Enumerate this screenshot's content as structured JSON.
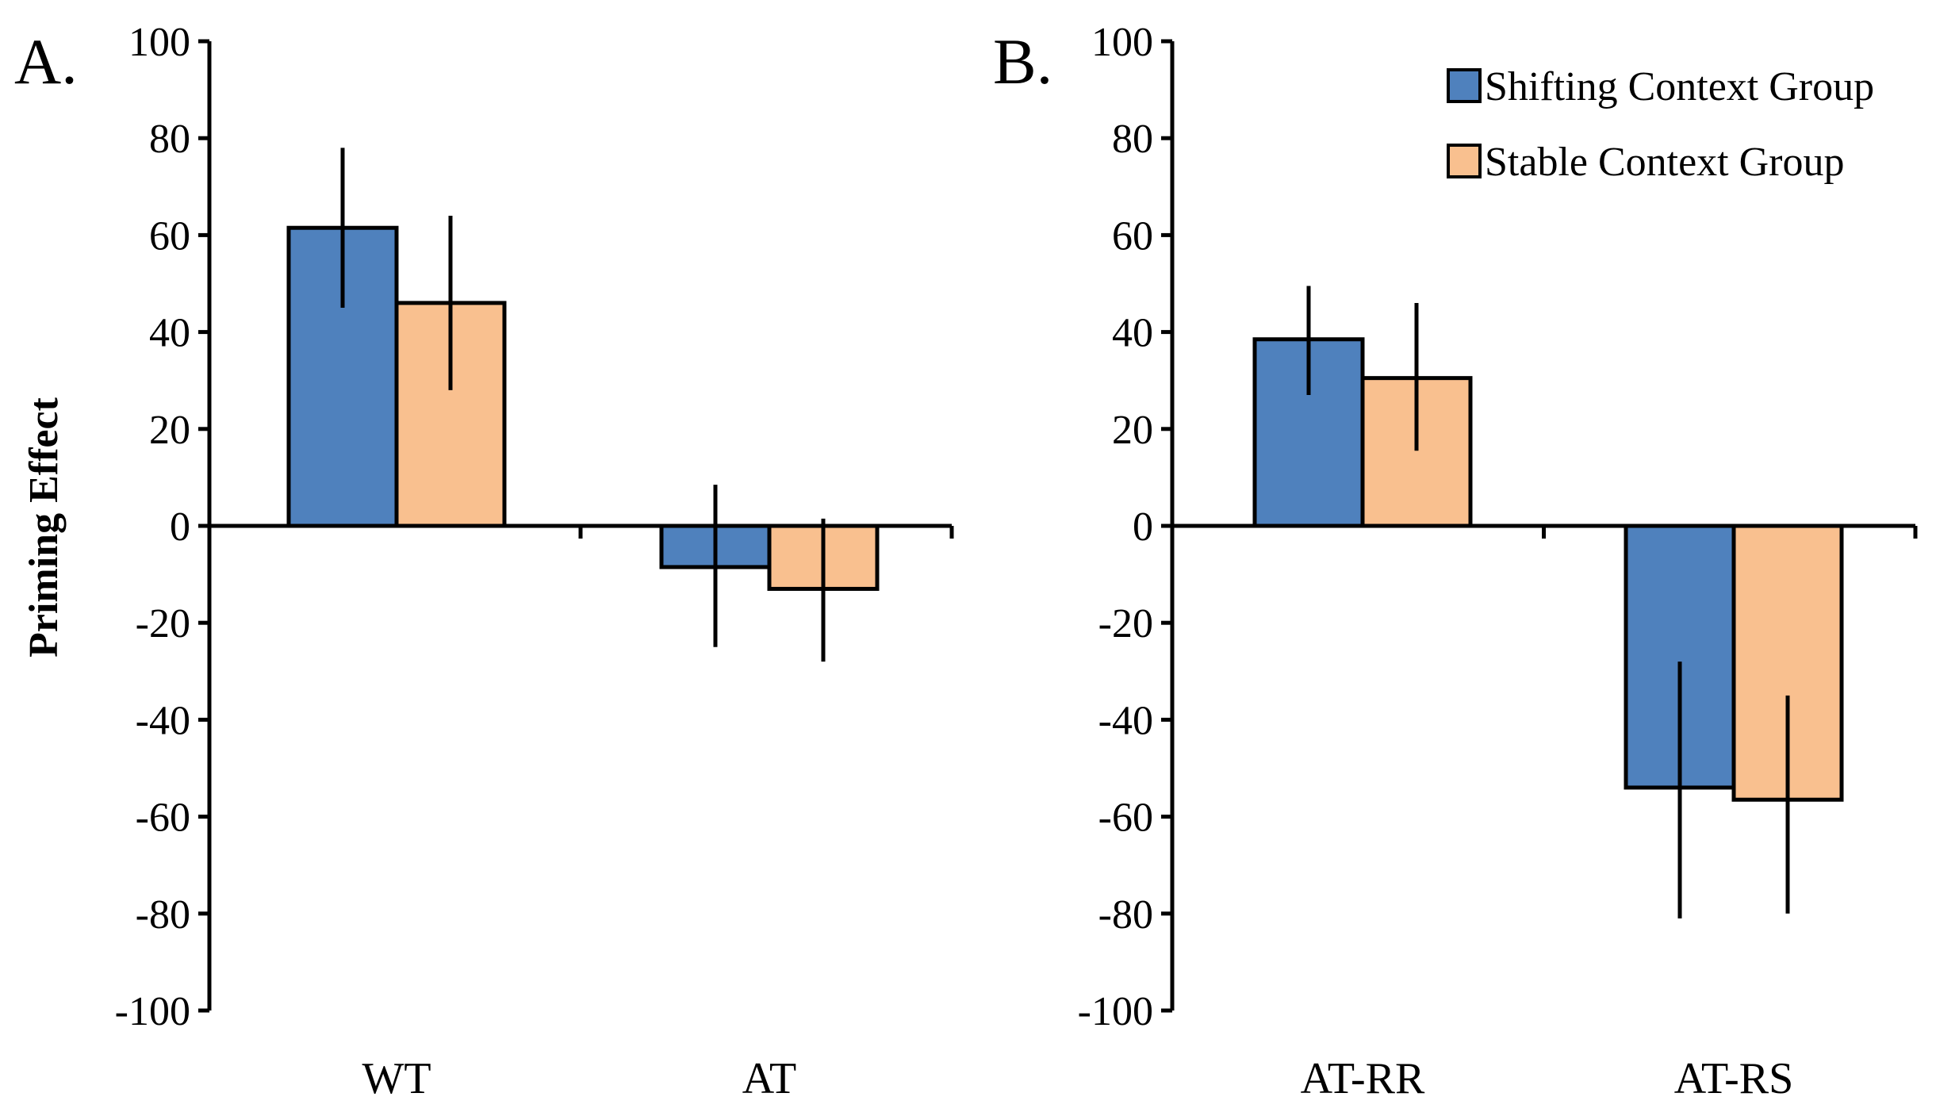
{
  "ylabel": "Priming Effect",
  "legend": {
    "position": "top-right",
    "entries": [
      {
        "name": "Shifting Context Group",
        "color": "#4f81bd"
      },
      {
        "name": "Stable Context Group",
        "color": "#f9c08f"
      }
    ]
  },
  "chart_data": [
    {
      "type": "bar",
      "panel_label": "A.",
      "categories": [
        "WT",
        "AT"
      ],
      "ylim": [
        -100,
        100
      ],
      "yticks": [
        "100",
        "80",
        "60",
        "40",
        "20",
        "0",
        "-20",
        "-40",
        "-60",
        "-80",
        "-100"
      ],
      "series": [
        {
          "name": "Shifting Context Group",
          "color": "#4f81bd",
          "values": [
            61.5,
            -8.5
          ],
          "err_low": [
            45,
            -25
          ],
          "err_high": [
            78,
            8.5
          ]
        },
        {
          "name": "Stable Context Group",
          "color": "#f9c08f",
          "values": [
            46,
            -13
          ],
          "err_low": [
            28,
            -28
          ],
          "err_high": [
            64,
            1.5
          ]
        }
      ]
    },
    {
      "type": "bar",
      "panel_label": "B.",
      "categories": [
        "AT-RR",
        "AT-RS"
      ],
      "ylim": [
        -100,
        100
      ],
      "yticks": [
        "100",
        "80",
        "60",
        "40",
        "20",
        "0",
        "-20",
        "-40",
        "-60",
        "-80",
        "-100"
      ],
      "series": [
        {
          "name": "Shifting Context Group",
          "color": "#4f81bd",
          "values": [
            38.5,
            -54
          ],
          "err_low": [
            27,
            -81
          ],
          "err_high": [
            49.5,
            -28
          ]
        },
        {
          "name": "Stable Context Group",
          "color": "#f9c08f",
          "values": [
            30.5,
            -56.5
          ],
          "err_low": [
            15.5,
            -80
          ],
          "err_high": [
            46,
            -35
          ]
        }
      ]
    }
  ]
}
